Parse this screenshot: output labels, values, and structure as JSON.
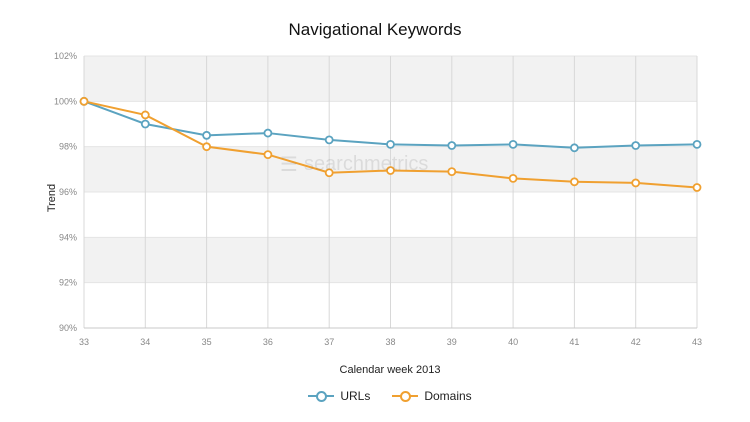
{
  "chart_data": {
    "type": "line",
    "title": "Navigational Keywords",
    "xlabel": "Calendar week 2013",
    "ylabel": "Trend",
    "x": [
      33,
      34,
      35,
      36,
      37,
      38,
      39,
      40,
      41,
      42,
      43
    ],
    "ylim": [
      90,
      102
    ],
    "yticks": [
      "90%",
      "92%",
      "94%",
      "96%",
      "98%",
      "100%",
      "102%"
    ],
    "grid": true,
    "legend_position": "bottom",
    "series": [
      {
        "name": "URLs",
        "color": "#5ba3c0",
        "values": [
          100,
          99.0,
          98.5,
          98.6,
          98.3,
          98.1,
          98.05,
          98.1,
          97.95,
          98.05,
          98.1
        ]
      },
      {
        "name": "Domains",
        "color": "#f0a030",
        "values": [
          100,
          99.4,
          98.0,
          97.65,
          96.85,
          96.95,
          96.9,
          96.6,
          96.45,
          96.4,
          96.2
        ]
      }
    ]
  },
  "watermark_text": "searchmetrics"
}
